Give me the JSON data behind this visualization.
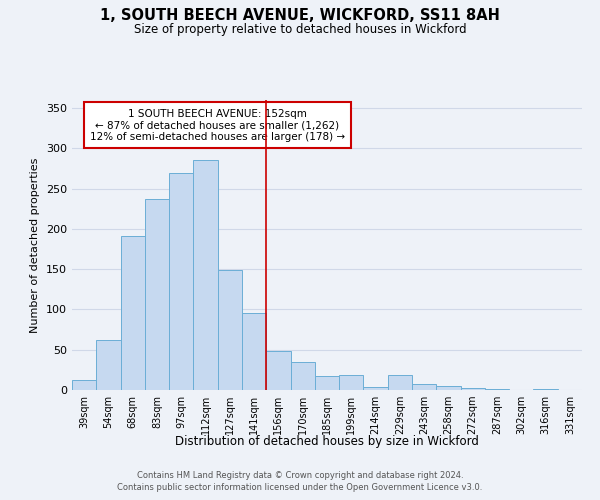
{
  "title": "1, SOUTH BEECH AVENUE, WICKFORD, SS11 8AH",
  "subtitle": "Size of property relative to detached houses in Wickford",
  "xlabel": "Distribution of detached houses by size in Wickford",
  "ylabel": "Number of detached properties",
  "bar_labels": [
    "39sqm",
    "54sqm",
    "68sqm",
    "83sqm",
    "97sqm",
    "112sqm",
    "127sqm",
    "141sqm",
    "156sqm",
    "170sqm",
    "185sqm",
    "199sqm",
    "214sqm",
    "229sqm",
    "243sqm",
    "258sqm",
    "272sqm",
    "287sqm",
    "302sqm",
    "316sqm",
    "331sqm"
  ],
  "bar_values": [
    13,
    62,
    191,
    237,
    270,
    285,
    149,
    96,
    49,
    35,
    17,
    19,
    4,
    19,
    8,
    5,
    2,
    1,
    0,
    1,
    0
  ],
  "bar_color": "#c6d9f0",
  "bar_edge_color": "#6baed6",
  "grid_color": "#d0d8e8",
  "background_color": "#eef2f8",
  "annotation_title": "1 SOUTH BEECH AVENUE: 152sqm",
  "annotation_line1": "← 87% of detached houses are smaller (1,262)",
  "annotation_line2": "12% of semi-detached houses are larger (178) →",
  "annotation_box_color": "#ffffff",
  "annotation_border_color": "#cc0000",
  "vline_x_index": 8,
  "vline_color": "#cc0000",
  "ylim": [
    0,
    360
  ],
  "yticks": [
    0,
    50,
    100,
    150,
    200,
    250,
    300,
    350
  ],
  "footnote1": "Contains HM Land Registry data © Crown copyright and database right 2024.",
  "footnote2": "Contains public sector information licensed under the Open Government Licence v3.0."
}
